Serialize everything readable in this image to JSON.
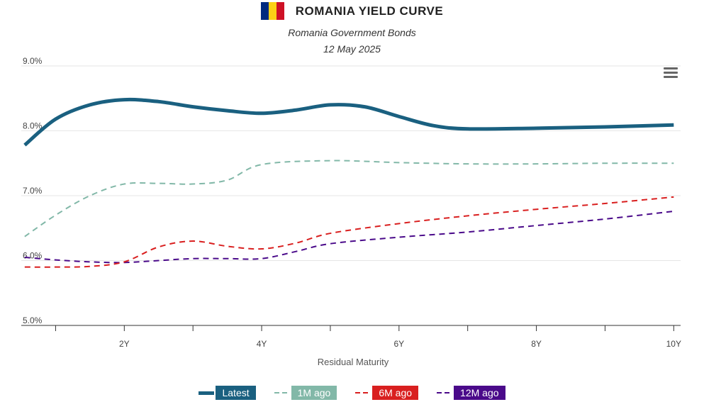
{
  "header": {
    "title": "ROMANIA YIELD CURVE",
    "subtitle": "Romania Government Bonds",
    "date": "12 May 2025",
    "flag_colors": [
      "#002B7F",
      "#FCD116",
      "#CE1126"
    ]
  },
  "menu": {
    "icon": "hamburger-menu-icon"
  },
  "chart_data": {
    "type": "line",
    "xlabel": "Residual Maturity",
    "ylabel": "",
    "xlim": [
      0.5,
      10.1
    ],
    "ylim": [
      5.0,
      9.0
    ],
    "x_ticks": [
      {
        "value": 2,
        "label": "2Y"
      },
      {
        "value": 4,
        "label": "4Y"
      },
      {
        "value": 6,
        "label": "6Y"
      },
      {
        "value": 8,
        "label": "8Y"
      },
      {
        "value": 10,
        "label": "10Y"
      }
    ],
    "x_minor_ticks": [
      1,
      3,
      5,
      7,
      9
    ],
    "y_ticks": [
      {
        "value": 5.0,
        "label": "5.0%"
      },
      {
        "value": 6.0,
        "label": "6.0%"
      },
      {
        "value": 7.0,
        "label": "7.0%"
      },
      {
        "value": 8.0,
        "label": "8.0%"
      },
      {
        "value": 9.0,
        "label": "9.0%"
      }
    ],
    "grid": true,
    "legend_position": "bottom-center",
    "series": [
      {
        "name": "Latest",
        "color": "#1a6080",
        "dash": "solid",
        "x": [
          0.55,
          1.0,
          1.5,
          2.0,
          2.5,
          3.0,
          3.5,
          4.0,
          4.5,
          5.0,
          5.5,
          6.0,
          6.5,
          7.0,
          8.0,
          9.0,
          10.0
        ],
        "y": [
          7.78,
          8.18,
          8.4,
          8.48,
          8.45,
          8.37,
          8.31,
          8.27,
          8.32,
          8.4,
          8.37,
          8.22,
          8.08,
          8.03,
          8.04,
          8.06,
          8.09
        ]
      },
      {
        "name": "1M ago",
        "color": "#82b8a8",
        "dash": "dashed",
        "x": [
          0.55,
          1.0,
          1.5,
          2.0,
          2.5,
          3.0,
          3.5,
          4.0,
          5.0,
          6.0,
          7.0,
          8.0,
          9.0,
          10.0
        ],
        "y": [
          6.37,
          6.7,
          7.0,
          7.18,
          7.19,
          7.18,
          7.24,
          7.48,
          7.54,
          7.51,
          7.49,
          7.49,
          7.5,
          7.5
        ]
      },
      {
        "name": "6M ago",
        "color": "#d91f1f",
        "dash": "dashed",
        "x": [
          0.55,
          1.0,
          1.5,
          2.0,
          2.5,
          3.0,
          3.5,
          4.0,
          4.5,
          5.0,
          6.0,
          7.0,
          8.0,
          9.0,
          10.0
        ],
        "y": [
          5.9,
          5.9,
          5.91,
          5.98,
          6.21,
          6.3,
          6.22,
          6.18,
          6.27,
          6.42,
          6.57,
          6.69,
          6.79,
          6.88,
          6.98
        ]
      },
      {
        "name": "12M ago",
        "color": "#4a0a8a",
        "dash": "dashed",
        "x": [
          0.55,
          1.0,
          1.5,
          2.0,
          2.5,
          3.0,
          3.5,
          4.0,
          4.5,
          5.0,
          6.0,
          7.0,
          8.0,
          9.0,
          10.0
        ],
        "y": [
          6.05,
          6.01,
          5.98,
          5.97,
          6.0,
          6.03,
          6.03,
          6.03,
          6.14,
          6.26,
          6.36,
          6.44,
          6.54,
          6.64,
          6.76
        ]
      }
    ]
  }
}
